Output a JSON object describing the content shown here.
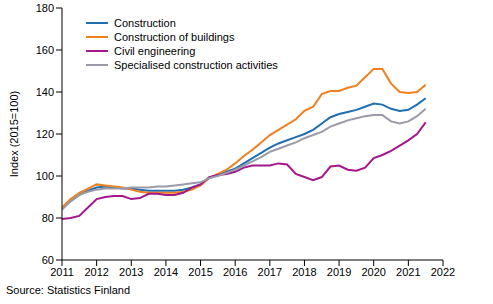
{
  "chart_data": {
    "type": "line",
    "y_label": "Index (2015=100)",
    "source": "Source: Statistics Finland",
    "x": [
      2011,
      2011.25,
      2011.5,
      2011.75,
      2012,
      2012.25,
      2012.5,
      2012.75,
      2013,
      2013.25,
      2013.5,
      2013.75,
      2014,
      2014.25,
      2014.5,
      2014.75,
      2015,
      2015.25,
      2015.5,
      2015.75,
      2016,
      2016.25,
      2016.5,
      2016.75,
      2017,
      2017.25,
      2017.5,
      2017.75,
      2018,
      2018.25,
      2018.5,
      2018.75,
      2019,
      2019.25,
      2019.5,
      2019.75,
      2020,
      2020.25,
      2020.5,
      2020.75,
      2021,
      2021.25,
      2021.5
    ],
    "series": [
      {
        "name": "Construction",
        "color": "#1f6fb2",
        "values": [
          85,
          88,
          91,
          93,
          94.5,
          95,
          94.5,
          94,
          94,
          93.5,
          93,
          93,
          93,
          93,
          93.5,
          94.5,
          96,
          99,
          100.5,
          102,
          103.5,
          106,
          108.5,
          111,
          113.5,
          115.5,
          117,
          118.5,
          120,
          122,
          125,
          128,
          129.5,
          130.5,
          131.5,
          133,
          134.5,
          134,
          132,
          131,
          131.5,
          134,
          137
        ]
      },
      {
        "name": "Construction of buildings",
        "color": "#f07f1e",
        "values": [
          85,
          89,
          92,
          94,
          96,
          95.5,
          95,
          94.5,
          93.5,
          92.5,
          92,
          92,
          92,
          92,
          92.5,
          93.5,
          95.5,
          99,
          101,
          103,
          106,
          109.5,
          112.5,
          116,
          119.5,
          122,
          124.5,
          127,
          131,
          133,
          139,
          140.5,
          140.5,
          142,
          143,
          147,
          151,
          151,
          144,
          140,
          139.5,
          140,
          143.5
        ]
      },
      {
        "name": "Civil engineering",
        "color": "#a5178c",
        "values": [
          79.5,
          80,
          81,
          85,
          89,
          90,
          90.5,
          90.5,
          89,
          89.5,
          91.5,
          91.5,
          91,
          91,
          92,
          94.5,
          96,
          99.5,
          100.5,
          101,
          102,
          104,
          105,
          105,
          105,
          106,
          105.5,
          101,
          99.5,
          98,
          99.5,
          104.5,
          105,
          103,
          102.5,
          104,
          108.5,
          110,
          112,
          114.5,
          117,
          120,
          125.5
        ]
      },
      {
        "name": "Specialised construction activities",
        "color": "#9a9aa8",
        "values": [
          84,
          88,
          91,
          92.5,
          93.5,
          94,
          94,
          94,
          94.5,
          94.5,
          94.5,
          95,
          95,
          95.5,
          96,
          96.5,
          97,
          99,
          100,
          101.5,
          103,
          105,
          107,
          109,
          111.5,
          113,
          114.5,
          116,
          118,
          119.5,
          121,
          123.5,
          125,
          126.5,
          127.5,
          128.5,
          129,
          129,
          126,
          125,
          126,
          128.5,
          132
        ]
      }
    ],
    "xlim": [
      2011,
      2022
    ],
    "xticks": [
      2011,
      2012,
      2013,
      2014,
      2015,
      2016,
      2017,
      2018,
      2019,
      2020,
      2021,
      2022
    ],
    "ylim": [
      60,
      180
    ],
    "yticks": [
      60,
      80,
      100,
      120,
      140,
      160,
      180
    ],
    "grid": false,
    "legend": "upper left"
  }
}
